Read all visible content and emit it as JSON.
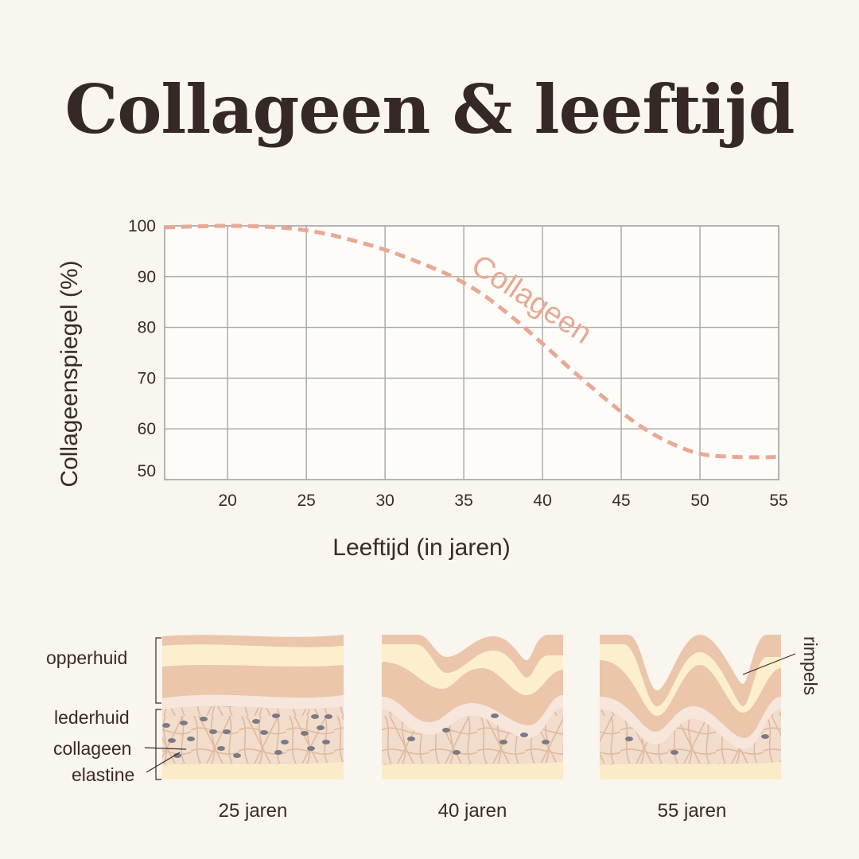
{
  "title": "Collageen & leeftijd",
  "chart_data": {
    "type": "line",
    "xlabel": "Leeftijd (in jaren)",
    "ylabel": "Collageenspiegel (%)",
    "xlim": [
      16,
      55
    ],
    "ylim": [
      50,
      100
    ],
    "x_ticks": [
      20,
      25,
      30,
      35,
      40,
      45,
      50,
      55
    ],
    "y_ticks": [
      100,
      90,
      80,
      70,
      60,
      50
    ],
    "grid": true,
    "series": [
      {
        "name": "Collageen",
        "color": "#e7a895",
        "style": "dashed",
        "x": [
          16,
          18,
          20,
          22,
          24,
          26,
          28,
          30,
          32,
          34,
          36,
          38,
          40,
          42,
          44,
          46,
          48,
          50,
          52,
          54,
          55
        ],
        "y": [
          99.7,
          99.9,
          100,
          99.9,
          99.5,
          98.6,
          97.1,
          95.3,
          93.0,
          90.4,
          86.9,
          82.2,
          76.8,
          71.2,
          65.9,
          61.0,
          57.4,
          55.1,
          54.5,
          54.4,
          54.5
        ]
      }
    ]
  },
  "skin": {
    "labels": {
      "epidermis": "opperhuid",
      "dermis": "lederhuid",
      "collagen": "collageen",
      "elastin": "elastine",
      "wrinkles": "rimpels"
    },
    "panels": [
      {
        "caption": "25 jaren"
      },
      {
        "caption": "40 jaren"
      },
      {
        "caption": "55 jaren"
      }
    ],
    "colors": {
      "epidermis": "#ebc6ab",
      "epidermis_band": "#fcefcd",
      "basement": "#f6e6dc",
      "dermis": "#f2dccc",
      "fibers": "#dfb9a1",
      "base_layer": "#fbecc9",
      "cells": "#7a7a86"
    }
  }
}
